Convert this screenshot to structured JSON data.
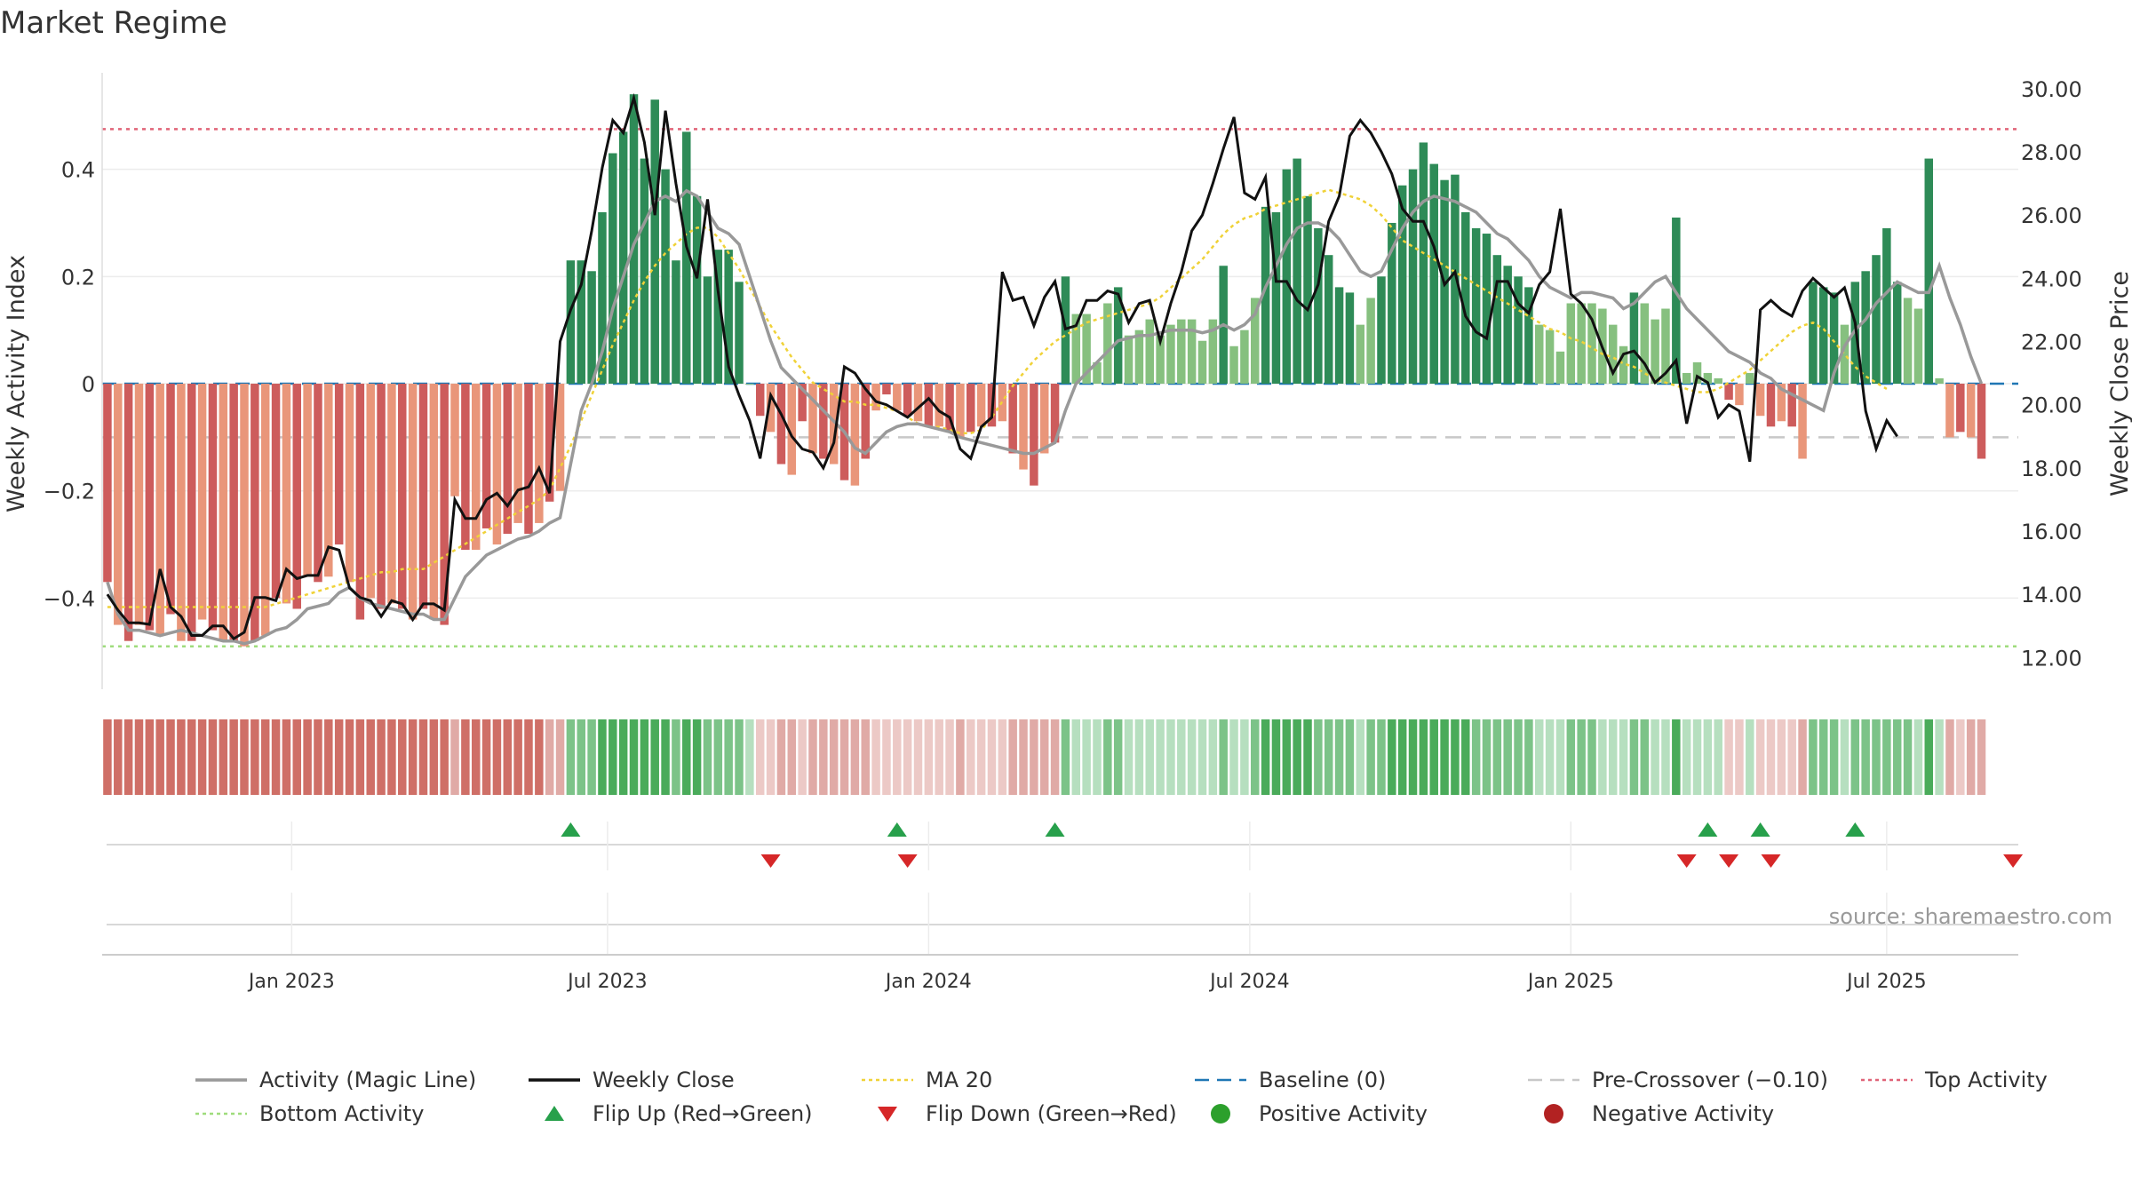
{
  "title": "Market Regime",
  "source": "source: sharemaestro.com",
  "colors": {
    "pos_dark": "#2e8b57",
    "pos_light": "#86c07f",
    "neg_dark": "#cd5c5c",
    "neg_light": "#e9967a",
    "activity_line": "#999999",
    "close_line": "#111111",
    "ma_line": "#f0d238",
    "baseline": "#1f77b4",
    "pre_crossover": "#c8c8c8",
    "top_activity": "#e06478",
    "bottom_activity": "#9fdc7c",
    "flip_up": "#27a04b",
    "flip_down": "#d62728",
    "positive_dot": "#2ca02c",
    "negative_dot": "#b22222"
  },
  "legend": [
    {
      "key": "activity",
      "label": "Activity (Magic Line)",
      "kind": "line",
      "color": "#999999"
    },
    {
      "key": "close",
      "label": "Weekly Close",
      "kind": "line",
      "color": "#111111"
    },
    {
      "key": "ma",
      "label": "MA 20",
      "kind": "dotted",
      "color": "#f0d238"
    },
    {
      "key": "baseline",
      "label": "Baseline (0)",
      "kind": "dashed",
      "color": "#1f77b4"
    },
    {
      "key": "pre",
      "label": "Pre-Crossover (−0.10)",
      "kind": "dashed",
      "color": "#c8c8c8"
    },
    {
      "key": "top",
      "label": "Top Activity",
      "kind": "dotted",
      "color": "#e06478"
    },
    {
      "key": "bottom",
      "label": "Bottom Activity",
      "kind": "dotted",
      "color": "#9fdc7c"
    },
    {
      "key": "flip_up",
      "label": "Flip Up (Red→Green)",
      "kind": "tri-up",
      "color": "#27a04b"
    },
    {
      "key": "flip_down",
      "label": "Flip Down (Green→Red)",
      "kind": "tri-down",
      "color": "#d62728"
    },
    {
      "key": "pos",
      "label": "Positive Activity",
      "kind": "dot",
      "color": "#2ca02c"
    },
    {
      "key": "neg",
      "label": "Negative Activity",
      "kind": "dot",
      "color": "#b22222"
    }
  ],
  "chart_data": {
    "type": "bar",
    "title": "Market Regime",
    "ylabel": "Weekly Activity Index",
    "y2label": "Weekly Close Price",
    "ylim": [
      -0.57,
      0.58
    ],
    "y2lim": [
      11.0,
      30.5
    ],
    "yticks": [
      {
        "v": 0.4,
        "t": "0.4"
      },
      {
        "v": 0.2,
        "t": "0.2"
      },
      {
        "v": 0,
        "t": "0"
      },
      {
        "v": -0.2,
        "t": "−0.2"
      },
      {
        "v": -0.4,
        "t": "−0.4"
      }
    ],
    "y2ticks": [
      {
        "v": 30,
        "t": "30.00"
      },
      {
        "v": 28,
        "t": "28.00"
      },
      {
        "v": 26,
        "t": "26.00"
      },
      {
        "v": 24,
        "t": "24.00"
      },
      {
        "v": 22,
        "t": "22.00"
      },
      {
        "v": 20,
        "t": "20.00"
      },
      {
        "v": 18,
        "t": "18.00"
      },
      {
        "v": 16,
        "t": "16.00"
      },
      {
        "v": 14,
        "t": "14.00"
      },
      {
        "v": 12,
        "t": "12.00"
      }
    ],
    "xticks": [
      {
        "i": 17.5,
        "t": "Jan 2023"
      },
      {
        "i": 47.5,
        "t": "Jul 2023"
      },
      {
        "i": 78,
        "t": "Jan 2024"
      },
      {
        "i": 108.5,
        "t": "Jul 2024"
      },
      {
        "i": 139,
        "t": "Jan 2025"
      },
      {
        "i": 169,
        "t": "Jul 2025"
      }
    ],
    "weeks": 182,
    "reference_lines": {
      "top_activity": 0.475,
      "bottom_activity": -0.49,
      "baseline": 0,
      "pre_crossover": -0.1
    },
    "activity": [
      -0.37,
      -0.45,
      -0.48,
      -0.45,
      -0.46,
      -0.47,
      -0.43,
      -0.48,
      -0.48,
      -0.44,
      -0.46,
      -0.48,
      -0.48,
      -0.49,
      -0.48,
      -0.47,
      -0.4,
      -0.41,
      -0.42,
      -0.36,
      -0.37,
      -0.36,
      -0.3,
      -0.37,
      -0.44,
      -0.4,
      -0.42,
      -0.41,
      -0.42,
      -0.44,
      -0.42,
      -0.44,
      -0.45,
      -0.21,
      -0.31,
      -0.31,
      -0.27,
      -0.3,
      -0.28,
      -0.26,
      -0.28,
      -0.26,
      -0.22,
      -0.2,
      0.23,
      0.23,
      0.21,
      0.32,
      0.43,
      0.47,
      0.54,
      0.42,
      0.53,
      0.4,
      0.23,
      0.47,
      0.35,
      0.2,
      0.25,
      0.25,
      0.19,
      0.0,
      -0.06,
      -0.09,
      -0.15,
      -0.17,
      -0.07,
      -0.13,
      -0.14,
      -0.15,
      -0.18,
      -0.19,
      -0.14,
      -0.05,
      -0.02,
      -0.05,
      -0.06,
      -0.07,
      -0.08,
      -0.08,
      -0.09,
      -0.1,
      -0.09,
      -0.08,
      -0.08,
      -0.07,
      -0.13,
      -0.16,
      -0.19,
      -0.13,
      -0.11,
      0.2,
      0.13,
      0.13,
      0.04,
      0.15,
      0.18,
      0.09,
      0.1,
      0.12,
      0.09,
      0.11,
      0.12,
      0.12,
      0.08,
      0.12,
      0.22,
      0.07,
      0.1,
      0.16,
      0.33,
      0.32,
      0.4,
      0.42,
      0.35,
      0.29,
      0.24,
      0.18,
      0.17,
      0.11,
      0.16,
      0.2,
      0.3,
      0.37,
      0.4,
      0.45,
      0.41,
      0.38,
      0.39,
      0.32,
      0.29,
      0.28,
      0.24,
      0.22,
      0.2,
      0.18,
      0.11,
      0.1,
      0.06,
      0.15,
      0.15,
      0.15,
      0.14,
      0.11,
      0.07,
      0.17,
      0.15,
      0.12,
      0.14,
      0.31,
      0.02,
      0.04,
      0.02,
      0.01,
      -0.03,
      -0.04,
      0.02,
      -0.06,
      -0.08,
      -0.07,
      -0.08,
      -0.14,
      0.19,
      0.18,
      0.17,
      0.11,
      0.19,
      0.21,
      0.24,
      0.29,
      0.19,
      0.16,
      0.14,
      0.42,
      0.01,
      -0.1,
      -0.09,
      -0.1,
      -0.14
    ],
    "activity_line": [
      -0.37,
      -0.43,
      -0.46,
      -0.46,
      -0.465,
      -0.47,
      -0.465,
      -0.46,
      -0.465,
      -0.47,
      -0.475,
      -0.48,
      -0.48,
      -0.485,
      -0.48,
      -0.47,
      -0.46,
      -0.455,
      -0.44,
      -0.42,
      -0.415,
      -0.41,
      -0.39,
      -0.38,
      -0.4,
      -0.41,
      -0.415,
      -0.42,
      -0.425,
      -0.43,
      -0.43,
      -0.44,
      -0.44,
      -0.4,
      -0.36,
      -0.34,
      -0.32,
      -0.31,
      -0.3,
      -0.29,
      -0.285,
      -0.275,
      -0.26,
      -0.25,
      -0.15,
      -0.05,
      0.0,
      0.06,
      0.14,
      0.2,
      0.26,
      0.3,
      0.34,
      0.35,
      0.34,
      0.36,
      0.35,
      0.32,
      0.29,
      0.28,
      0.26,
      0.2,
      0.14,
      0.08,
      0.03,
      0.01,
      -0.01,
      -0.03,
      -0.05,
      -0.07,
      -0.09,
      -0.12,
      -0.13,
      -0.11,
      -0.09,
      -0.08,
      -0.075,
      -0.075,
      -0.08,
      -0.085,
      -0.09,
      -0.1,
      -0.105,
      -0.11,
      -0.115,
      -0.12,
      -0.125,
      -0.13,
      -0.13,
      -0.12,
      -0.11,
      -0.05,
      0.0,
      0.02,
      0.04,
      0.06,
      0.08,
      0.085,
      0.09,
      0.09,
      0.095,
      0.1,
      0.1,
      0.1,
      0.095,
      0.1,
      0.11,
      0.1,
      0.11,
      0.13,
      0.18,
      0.22,
      0.26,
      0.29,
      0.3,
      0.3,
      0.29,
      0.27,
      0.24,
      0.21,
      0.2,
      0.21,
      0.25,
      0.29,
      0.32,
      0.34,
      0.35,
      0.345,
      0.34,
      0.33,
      0.32,
      0.3,
      0.28,
      0.27,
      0.25,
      0.23,
      0.2,
      0.18,
      0.17,
      0.16,
      0.17,
      0.17,
      0.165,
      0.16,
      0.14,
      0.15,
      0.17,
      0.19,
      0.2,
      0.17,
      0.14,
      0.12,
      0.1,
      0.08,
      0.06,
      0.05,
      0.04,
      0.02,
      0.01,
      -0.01,
      -0.02,
      -0.03,
      -0.04,
      -0.05,
      0.02,
      0.07,
      0.1,
      0.12,
      0.15,
      0.17,
      0.19,
      0.18,
      0.17,
      0.17,
      0.22,
      0.16,
      0.11,
      0.05,
      0.0
    ],
    "close": [
      14.0,
      13.5,
      13.1,
      13.1,
      13.05,
      14.8,
      13.6,
      13.3,
      12.7,
      12.7,
      13.0,
      13.0,
      12.6,
      12.8,
      13.9,
      13.9,
      13.8,
      14.8,
      14.5,
      14.6,
      14.6,
      15.5,
      15.4,
      14.2,
      13.9,
      13.8,
      13.3,
      13.8,
      13.7,
      13.2,
      13.7,
      13.7,
      13.5,
      17.0,
      16.4,
      16.4,
      17.0,
      17.2,
      16.8,
      17.3,
      17.4,
      18.0,
      17.2,
      22.0,
      23.0,
      23.8,
      25.5,
      27.5,
      29.0,
      28.6,
      29.7,
      28.3,
      26.0,
      29.3,
      27.0,
      25.0,
      24.0,
      26.5,
      23.6,
      21.2,
      20.3,
      19.5,
      18.3,
      20.3,
      19.7,
      19.0,
      18.6,
      18.5,
      18.0,
      18.8,
      21.2,
      21.0,
      20.5,
      20.1,
      20.0,
      19.8,
      19.6,
      19.9,
      20.2,
      19.8,
      19.6,
      18.6,
      18.3,
      19.3,
      19.6,
      24.2,
      23.3,
      23.4,
      22.5,
      23.4,
      23.9,
      22.4,
      22.5,
      23.3,
      23.3,
      23.6,
      23.5,
      22.6,
      23.2,
      23.3,
      22.0,
      23.2,
      24.2,
      25.5,
      26.0,
      27.0,
      28.1,
      29.1,
      26.7,
      26.5,
      27.2,
      23.9,
      23.9,
      23.3,
      23.0,
      23.8,
      25.8,
      26.6,
      28.5,
      29.0,
      28.6,
      28.0,
      27.3,
      26.2,
      25.8,
      25.8,
      25.0,
      23.8,
      24.2,
      22.8,
      22.3,
      22.1,
      23.9,
      23.9,
      23.2,
      22.9,
      23.8,
      24.2,
      26.2,
      23.5,
      23.2,
      22.7,
      21.8,
      21.0,
      21.6,
      21.7,
      21.3,
      20.7,
      21.0,
      21.4,
      19.4,
      20.9,
      20.7,
      19.6,
      20.0,
      19.8,
      18.2,
      23.0,
      23.3,
      23.0,
      22.8,
      23.6,
      24.0,
      23.7,
      23.4,
      23.7,
      22.6,
      19.8,
      18.6,
      19.5,
      19.0
    ],
    "ma20": [
      13.6,
      13.6,
      13.6,
      13.6,
      13.6,
      13.6,
      13.6,
      13.6,
      13.6,
      13.6,
      13.6,
      13.6,
      13.6,
      13.6,
      13.6,
      13.6,
      13.7,
      13.8,
      13.9,
      14.0,
      14.1,
      14.2,
      14.3,
      14.4,
      14.5,
      14.6,
      14.7,
      14.7,
      14.8,
      14.8,
      14.8,
      15.0,
      15.2,
      15.4,
      15.6,
      15.8,
      16.0,
      16.2,
      16.4,
      16.6,
      16.8,
      17.0,
      17.3,
      18.0,
      18.7,
      19.5,
      20.3,
      21.1,
      21.9,
      22.6,
      23.3,
      23.9,
      24.4,
      24.8,
      25.1,
      25.4,
      25.6,
      25.6,
      25.3,
      24.8,
      24.3,
      23.7,
      23.1,
      22.5,
      22.0,
      21.5,
      21.1,
      20.7,
      20.5,
      20.3,
      20.1,
      20.1,
      20.0,
      20.0,
      19.9,
      19.8,
      19.6,
      19.4,
      19.3,
      19.3,
      19.2,
      19.1,
      19.1,
      19.2,
      19.6,
      20.1,
      20.6,
      21.0,
      21.4,
      21.7,
      22.0,
      22.2,
      22.4,
      22.6,
      22.7,
      22.8,
      22.9,
      23.0,
      23.1,
      23.2,
      23.4,
      23.7,
      24.0,
      24.3,
      24.6,
      25.0,
      25.4,
      25.7,
      25.9,
      26.0,
      26.2,
      26.3,
      26.4,
      26.5,
      26.6,
      26.7,
      26.8,
      26.7,
      26.6,
      26.5,
      26.3,
      26.0,
      25.6,
      25.2,
      25.0,
      24.8,
      24.6,
      24.4,
      24.2,
      24.0,
      23.8,
      23.6,
      23.4,
      23.2,
      23.0,
      22.8,
      22.6,
      22.4,
      22.3,
      22.1,
      22.0,
      21.8,
      21.6,
      21.5,
      21.3,
      21.2,
      21.0,
      20.8,
      20.7,
      20.6,
      20.5,
      20.4,
      20.4,
      20.5,
      20.7,
      20.9,
      21.1,
      21.4,
      21.7,
      22.0,
      22.3,
      22.5,
      22.6,
      22.4,
      22.0,
      21.6,
      21.2,
      20.9,
      20.7,
      20.5
    ],
    "flip_up_weeks": [
      44,
      75,
      90,
      152,
      157,
      166
    ],
    "flip_down_weeks": [
      63,
      76,
      150,
      154,
      158,
      181
    ]
  }
}
